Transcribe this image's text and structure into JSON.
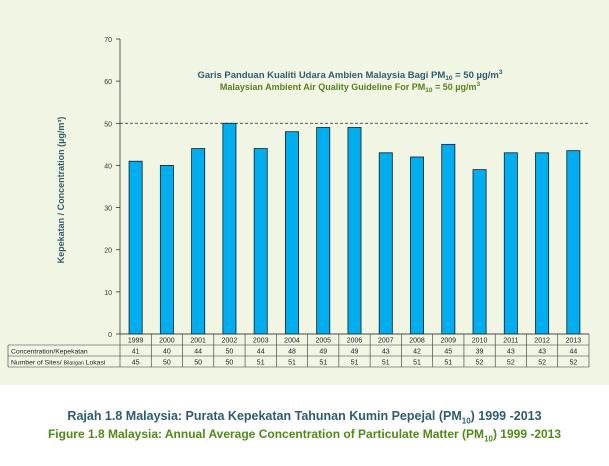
{
  "chart_data": {
    "type": "bar",
    "categories": [
      "1999",
      "2000",
      "2001",
      "2002",
      "2003",
      "2004",
      "2005",
      "2006",
      "2007",
      "2008",
      "2009",
      "2010",
      "2011",
      "2012",
      "2013"
    ],
    "values": [
      41,
      40,
      44,
      50,
      44,
      48,
      49,
      49,
      43,
      42,
      45,
      39,
      43,
      43,
      43.5
    ],
    "ylabel": "Kepekatan / Concentration (µg/m³)",
    "ylim": [
      0,
      70
    ],
    "yticks": [
      0,
      10,
      20,
      30,
      40,
      50,
      60,
      70
    ],
    "grid": false,
    "bar_color": "#00aeef",
    "guideline": {
      "value": 50,
      "label_malay": "Garis Panduan Kualiti Udara Ambien Malaysia Bagi PM",
      "label_english": "Malaysian Ambient Air Quality Guideline For PM",
      "label_sub": "10",
      "label_value": " = 50 µg/m",
      "label_sup": "3"
    },
    "table": {
      "concentration_label": "Concentration/Kepekatan",
      "concentration_row": [
        "41",
        "40",
        "44",
        "50",
        "44",
        "48",
        "49",
        "49",
        "43",
        "42",
        "45",
        "39",
        "43",
        "43",
        "44"
      ],
      "sites_label_prefix": "Number of Sites/",
      "sites_label_small": "Bilangan",
      "sites_label_suffix": " Lokasi",
      "sites_row": [
        "45",
        "50",
        "50",
        "50",
        "51",
        "51",
        "51",
        "51",
        "51",
        "51",
        "51",
        "52",
        "52",
        "52",
        "52"
      ]
    }
  },
  "caption": {
    "malay_prefix": "Rajah 1.8 Malaysia: Purata Kepekatan Tahunan Kumin Pepejal (PM",
    "malay_sub": "10",
    "malay_suffix": ") 1999 -2013",
    "english_prefix": "Figure 1.8 Malaysia: Annual Average Concentration of Particulate Matter (PM",
    "english_sub": "10",
    "english_suffix": ") 1999 -2013"
  },
  "colors": {
    "plot_background": "#f1f6e4",
    "bar": "#00aeef",
    "malay_text": "#2f5c70",
    "english_text": "#4f8a16"
  }
}
